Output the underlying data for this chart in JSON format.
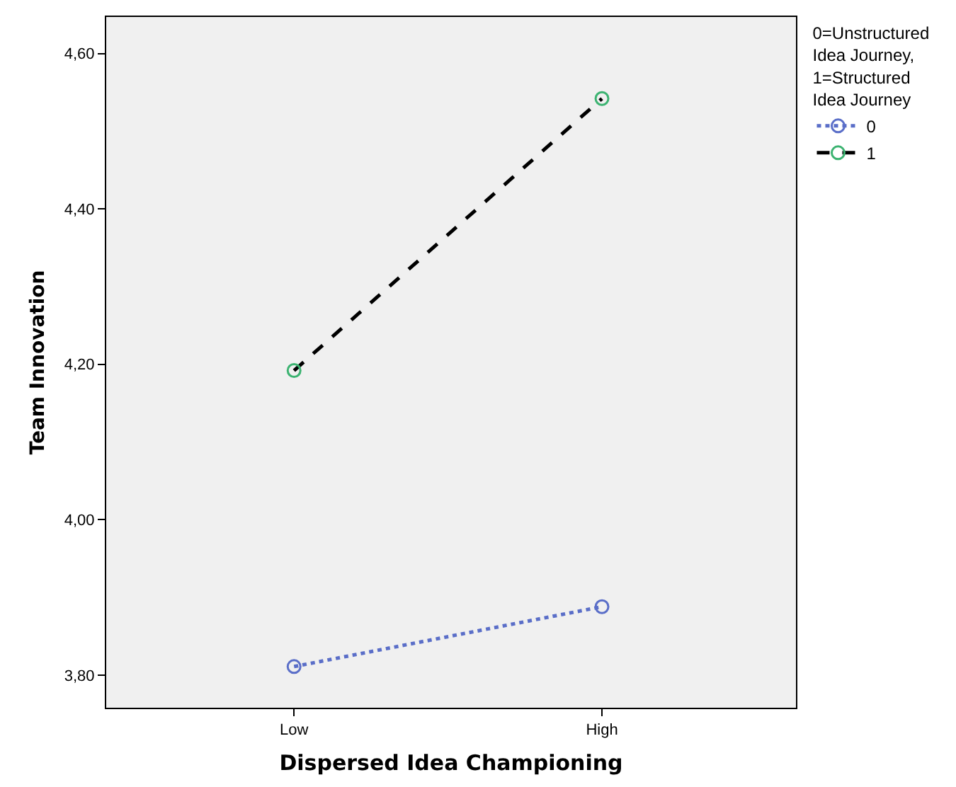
{
  "chart_data": {
    "type": "line",
    "xlabel": "Dispersed Idea Championing",
    "ylabel": "Team Innovation",
    "legend_title": "0=Unstructured\nIdea Journey,\n1=Structured\nIdea Journey",
    "categories": [
      "Low",
      "High"
    ],
    "series": [
      {
        "name": "0",
        "color": "#5a6ec8",
        "values": [
          3.811,
          3.888
        ],
        "line_style": "dotted"
      },
      {
        "name": "1",
        "color": "#000000",
        "colors": [
          "#3cb371",
          "#3cb371"
        ],
        "values": [
          4.192,
          4.542
        ],
        "line_style": "dashed"
      }
    ],
    "ylim": [
      3.758,
      4.647
    ],
    "yticks": [
      {
        "value": 3.8,
        "label": "3,80"
      },
      {
        "value": 4.0,
        "label": "4,00"
      },
      {
        "value": 4.2,
        "label": "4,20"
      },
      {
        "value": 4.4,
        "label": "4,40"
      },
      {
        "value": 4.6,
        "label": "4,60"
      }
    ],
    "marker": "circle",
    "grid": false,
    "legend": "right"
  }
}
